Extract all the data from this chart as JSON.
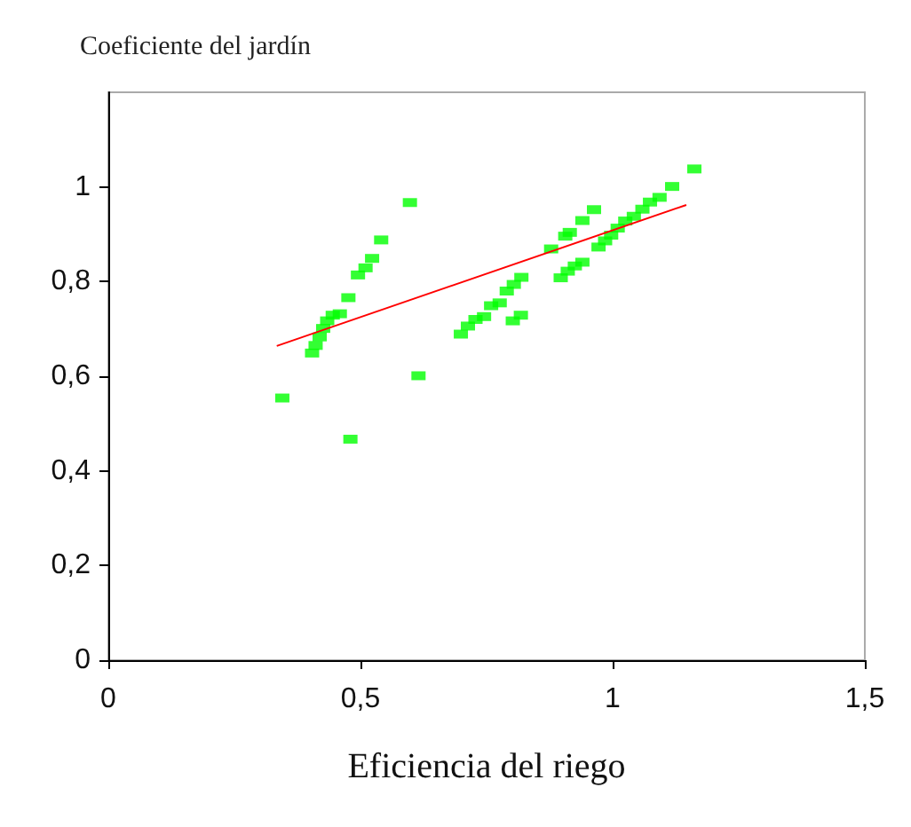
{
  "chart_data": {
    "type": "scatter",
    "title": "Coeficiente del jardín",
    "xlabel": "Eficiencia del riego",
    "xlim": [
      0,
      1.5
    ],
    "xticks": [
      {
        "value": 0,
        "label": "0"
      },
      {
        "value": 0.5,
        "label": "0,5"
      },
      {
        "value": 1,
        "label": "1"
      },
      {
        "value": 1.5,
        "label": "1,5"
      }
    ],
    "ylim": [
      0,
      1.2
    ],
    "yticks": [
      {
        "value": 0,
        "label": "0"
      },
      {
        "value": 0.2,
        "label": "0,2"
      },
      {
        "value": 0.4,
        "label": "0,4"
      },
      {
        "value": 0.6,
        "label": "0,6"
      },
      {
        "value": 0.8,
        "label": "0,8"
      },
      {
        "value": 1,
        "label": "1"
      }
    ],
    "grid": false,
    "series": [
      {
        "marker": "square",
        "color": "#00ff00",
        "x": [
          0.345,
          0.48,
          0.598,
          0.615,
          0.404,
          0.411,
          0.419,
          0.426,
          0.434,
          0.445,
          0.459,
          0.476,
          0.495,
          0.51,
          0.523,
          0.541,
          0.699,
          0.713,
          0.728,
          0.745,
          0.759,
          0.776,
          0.79,
          0.804,
          0.819,
          0.802,
          0.818,
          0.878,
          0.897,
          0.911,
          0.925,
          0.94,
          0.906,
          0.915,
          0.94,
          0.963,
          0.972,
          0.985,
          0.997,
          1.01,
          1.025,
          1.042,
          1.059,
          1.074,
          1.093,
          1.118,
          1.162
        ],
        "values": [
          0.554,
          0.467,
          0.967,
          0.601,
          0.649,
          0.665,
          0.683,
          0.701,
          0.717,
          0.729,
          0.732,
          0.766,
          0.814,
          0.829,
          0.849,
          0.888,
          0.689,
          0.706,
          0.72,
          0.726,
          0.749,
          0.755,
          0.78,
          0.794,
          0.809,
          0.717,
          0.729,
          0.869,
          0.808,
          0.822,
          0.833,
          0.841,
          0.896,
          0.904,
          0.929,
          0.952,
          0.873,
          0.886,
          0.898,
          0.913,
          0.928,
          0.938,
          0.953,
          0.968,
          0.978,
          1.001,
          1.038
        ]
      },
      {
        "type": "line",
        "color": "#ff0000",
        "x": [
          0.334,
          1.146
        ],
        "values": [
          0.664,
          0.962
        ]
      }
    ]
  }
}
